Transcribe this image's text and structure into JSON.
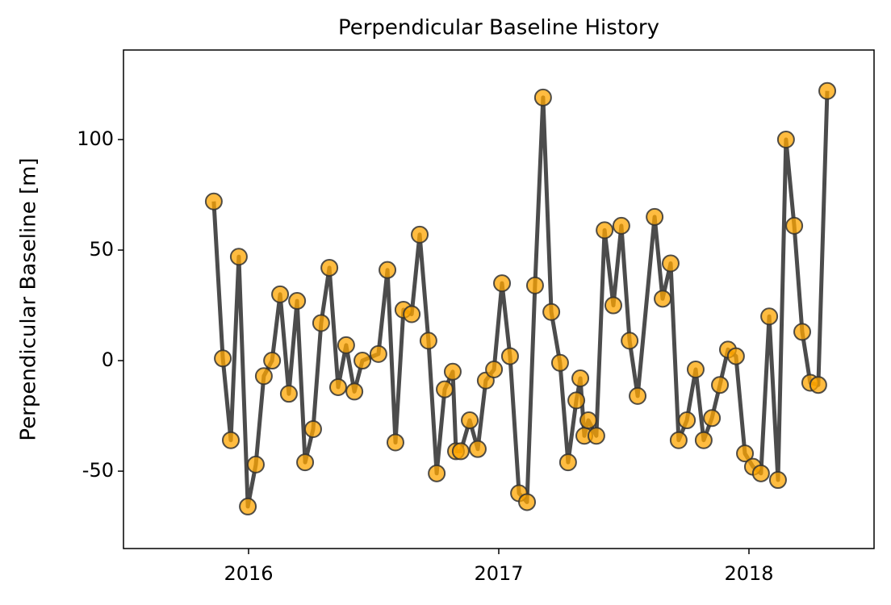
{
  "chart_data": {
    "type": "line",
    "title": "Perpendicular Baseline History",
    "y_label": "Perpendicular Baseline [m]",
    "line_color": "#333333",
    "marker_color": "#ffa500",
    "x": [
      2015.861,
      2015.897,
      2015.929,
      2015.961,
      2015.997,
      2016.029,
      2016.061,
      2016.094,
      2016.126,
      2016.161,
      2016.194,
      2016.226,
      2016.258,
      2016.29,
      2016.323,
      2016.358,
      2016.39,
      2016.423,
      2016.455,
      2016.519,
      2016.555,
      2016.587,
      2016.619,
      2016.652,
      2016.684,
      2016.719,
      2016.752,
      2016.784,
      2016.816,
      2016.829,
      2016.848,
      2016.884,
      2016.916,
      2016.948,
      2016.981,
      2017.013,
      2017.045,
      2017.081,
      2017.113,
      2017.145,
      2017.177,
      2017.21,
      2017.245,
      2017.277,
      2017.31,
      2017.326,
      2017.342,
      2017.358,
      2017.39,
      2017.423,
      2017.458,
      2017.49,
      2017.523,
      2017.555,
      2017.623,
      2017.655,
      2017.687,
      2017.719,
      2017.752,
      2017.787,
      2017.819,
      2017.852,
      2017.884,
      2017.916,
      2017.948,
      2017.984,
      2018.016,
      2018.048,
      2018.081,
      2018.116,
      2018.148,
      2018.181,
      2018.213,
      2018.245,
      2018.277,
      2018.313
    ],
    "values": [
      72,
      1,
      -36,
      47,
      -66,
      -47,
      -7,
      0,
      30,
      -15,
      27,
      -46,
      -31,
      17,
      42,
      -12,
      7,
      -14,
      0,
      3,
      41,
      -37,
      23,
      21,
      57,
      9,
      -51,
      -13,
      -5,
      -41,
      -41,
      -27,
      -40,
      -9,
      -4,
      35,
      2,
      -60,
      -64,
      34,
      119,
      22,
      -1,
      -46,
      -18,
      -8,
      -34,
      -27,
      -34,
      59,
      25,
      61,
      9,
      -16,
      65,
      28,
      44,
      -36,
      -27,
      -4,
      -36,
      -26,
      -11,
      5,
      2,
      -42,
      -48,
      -51,
      20,
      -54,
      100,
      61,
      13,
      -10,
      -11,
      122
    ],
    "xlim": [
      2015.5,
      2018.5
    ],
    "xticks": [
      2016,
      2017,
      2018
    ],
    "ylim": [
      -85,
      140.5
    ],
    "yticks": [
      -50,
      0,
      50,
      100
    ],
    "grid": false
  }
}
